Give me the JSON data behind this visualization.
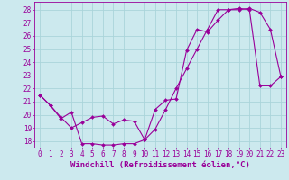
{
  "background_color": "#cce9ee",
  "grid_color": "#aad4da",
  "line_color": "#990099",
  "marker_color": "#990099",
  "xlim": [
    -0.5,
    23.5
  ],
  "ylim": [
    17.5,
    28.6
  ],
  "yticks": [
    18,
    19,
    20,
    21,
    22,
    23,
    24,
    25,
    26,
    27,
    28
  ],
  "xticks": [
    0,
    1,
    2,
    3,
    4,
    5,
    6,
    7,
    8,
    9,
    10,
    11,
    12,
    13,
    14,
    15,
    16,
    17,
    18,
    19,
    20,
    21,
    22,
    23
  ],
  "xlabel": "Windchill (Refroidissement éolien,°C)",
  "xlabel_fontsize": 6.5,
  "xlabel_color": "#990099",
  "tick_fontsize": 5.5,
  "tick_color": "#990099",
  "series1_x": [
    0,
    1,
    2,
    3,
    4,
    5,
    6,
    7,
    8,
    9,
    10,
    11,
    12,
    13,
    14,
    15,
    16,
    17,
    18,
    19,
    20,
    21,
    22,
    23
  ],
  "series1_y": [
    21.5,
    20.7,
    19.7,
    20.2,
    17.8,
    17.8,
    17.7,
    17.7,
    17.8,
    17.8,
    18.1,
    20.4,
    21.1,
    21.2,
    24.9,
    26.5,
    26.3,
    27.2,
    28.0,
    28.0,
    28.1,
    27.8,
    26.5,
    22.9
  ],
  "series2_x": [
    0,
    1,
    2,
    3,
    4,
    5,
    6,
    7,
    8,
    9,
    10,
    11,
    12,
    13,
    14,
    15,
    16,
    17,
    18,
    19,
    20,
    21,
    22,
    23
  ],
  "series2_y": [
    21.5,
    20.7,
    19.8,
    19.0,
    19.4,
    19.8,
    19.9,
    19.3,
    19.6,
    19.5,
    18.1,
    18.9,
    20.4,
    22.0,
    23.5,
    25.0,
    26.5,
    28.0,
    28.0,
    28.1,
    28.0,
    22.2,
    22.2,
    22.9
  ]
}
